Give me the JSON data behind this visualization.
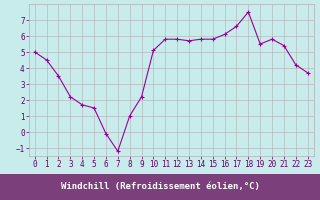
{
  "x": [
    0,
    1,
    2,
    3,
    4,
    5,
    6,
    7,
    8,
    9,
    10,
    11,
    12,
    13,
    14,
    15,
    16,
    17,
    18,
    19,
    20,
    21,
    22,
    23
  ],
  "y": [
    5.0,
    4.5,
    3.5,
    2.2,
    1.7,
    1.5,
    -0.1,
    -1.2,
    1.0,
    2.2,
    5.1,
    5.8,
    5.8,
    5.7,
    5.8,
    5.8,
    6.1,
    6.6,
    7.5,
    5.5,
    5.8,
    5.4,
    4.2,
    3.7
  ],
  "line_color": "#990099",
  "marker": "+",
  "marker_size": 3,
  "bg_color": "#c8ecec",
  "grid_color": "#b0b0b0",
  "axis_label_color": "#660066",
  "tick_color": "#660066",
  "xlabel": "Windchill (Refroidissement éolien,°C)",
  "xlabel_fontsize": 6.5,
  "tick_fontsize": 5.5,
  "ylim": [
    -1.5,
    8.0
  ],
  "xlim": [
    -0.5,
    23.5
  ],
  "yticks": [
    -1,
    0,
    1,
    2,
    3,
    4,
    5,
    6,
    7
  ],
  "xticks": [
    0,
    1,
    2,
    3,
    4,
    5,
    6,
    7,
    8,
    9,
    10,
    11,
    12,
    13,
    14,
    15,
    16,
    17,
    18,
    19,
    20,
    21,
    22,
    23
  ],
  "xlabel_bg": "#7b3f7b",
  "linewidth": 0.8,
  "markeredgewidth": 0.8
}
